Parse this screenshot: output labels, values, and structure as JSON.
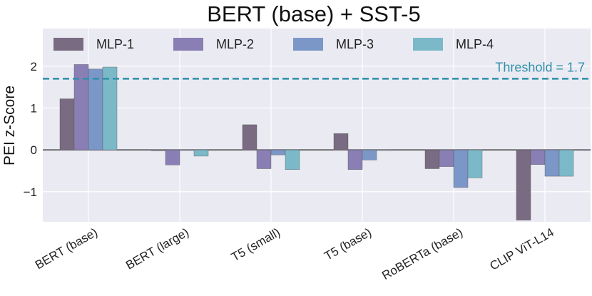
{
  "chart_data": {
    "type": "bar",
    "title": "BERT (base) + SST-5",
    "xlabel": "",
    "ylabel": "PEI z-Score",
    "categories": [
      "BERT (base)",
      "BERT (large)",
      "T5 (small)",
      "T5 (base)",
      "RoBERTa (base)",
      "CLIP ViT-L14"
    ],
    "series": [
      {
        "name": "MLP-1",
        "color": "#796b81",
        "values": [
          1.22,
          -0.02,
          0.6,
          0.39,
          -0.45,
          -1.68
        ]
      },
      {
        "name": "MLP-2",
        "color": "#8a7fb4",
        "values": [
          2.04,
          -0.36,
          -0.45,
          -0.47,
          -0.4,
          -0.35
        ]
      },
      {
        "name": "MLP-3",
        "color": "#7b97c8",
        "values": [
          1.93,
          0.0,
          -0.12,
          -0.24,
          -0.9,
          -0.63
        ]
      },
      {
        "name": "MLP-4",
        "color": "#7bb9c9",
        "values": [
          1.98,
          -0.15,
          -0.47,
          -0.01,
          -0.67,
          -0.63
        ]
      }
    ],
    "ylim": [
      -1.72,
      2.9
    ],
    "yticks": [
      -1,
      0,
      1,
      2
    ],
    "ytick_labels": [
      "−1",
      "0",
      "1",
      "2"
    ],
    "threshold": {
      "value": 1.7,
      "label": "Threshold = 1.7",
      "color": "#2e8fa8"
    },
    "grid": true,
    "legend": "top, single row"
  }
}
